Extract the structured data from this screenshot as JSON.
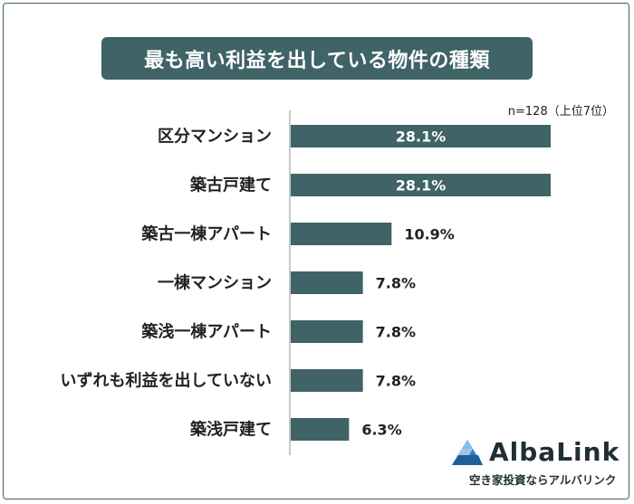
{
  "title": "最も高い利益を出している物件の種類",
  "note": "n=128（上位7位）",
  "colors": {
    "bar": "#3f6367",
    "title_bg": "#3f6367",
    "text": "#222222",
    "logo_blue": "#2f7fc1"
  },
  "chart_data": {
    "type": "bar",
    "orientation": "horizontal",
    "categories": [
      "区分マンション",
      "築古戸建て",
      "築古一棟アパート",
      "一棟マンション",
      "築浅一棟アパート",
      "いずれも利益を出していない",
      "築浅戸建て"
    ],
    "values": [
      28.1,
      28.1,
      10.9,
      7.8,
      7.8,
      7.8,
      6.3
    ],
    "value_labels": [
      "28.1%",
      "28.1%",
      "10.9%",
      "7.8%",
      "7.8%",
      "7.8%",
      "6.3%"
    ],
    "unit": "%",
    "xlim": [
      0,
      28.1
    ],
    "grid": false,
    "legend": "none"
  },
  "brand": {
    "name": "AlbaLink",
    "tagline": "空き家投資ならアルバリンク"
  }
}
